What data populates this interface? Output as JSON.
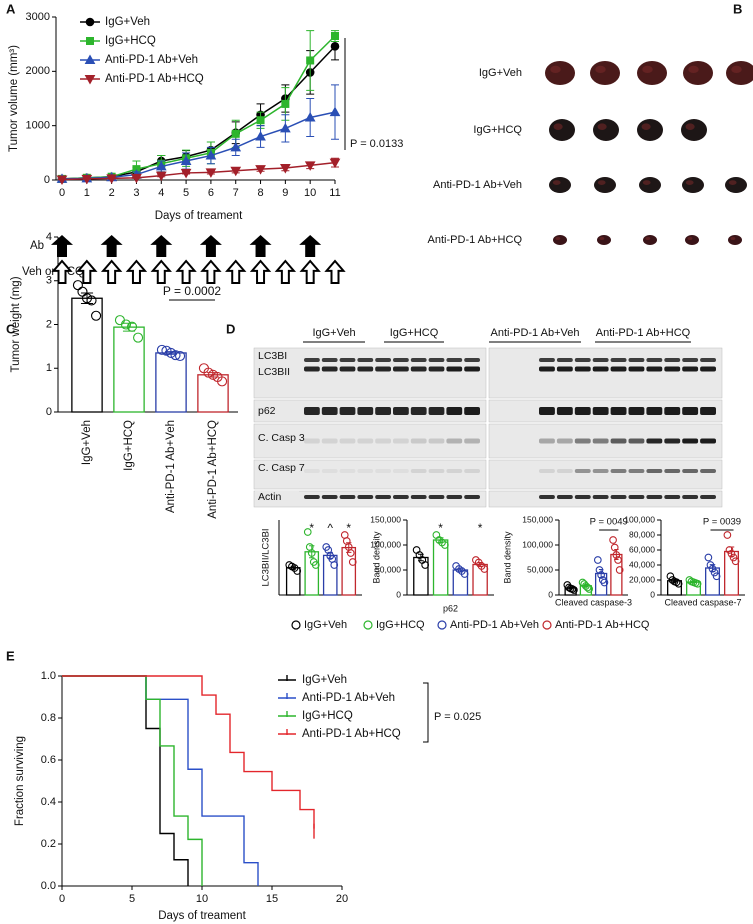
{
  "panel_labels": [
    "A",
    "B",
    "C",
    "D",
    "E"
  ],
  "schedule": {
    "rows": [
      "Ab",
      "Veh or HCQ"
    ],
    "ab_days": [
      0,
      2,
      4,
      6,
      8,
      10
    ],
    "veh_days": [
      0,
      1,
      2,
      3,
      4,
      5,
      6,
      7,
      8,
      9,
      10,
      11
    ]
  },
  "tumor_photos": {
    "rows": [
      "IgG+Veh",
      "IgG+HCQ",
      "Anti-PD-1 Ab+Veh",
      "Anti-PD-1 Ab+HCQ"
    ]
  },
  "blot": {
    "groups": [
      "IgG+Veh",
      "IgG+HCQ",
      "Anti-PD-1 Ab+Veh",
      "Anti-PD-1 Ab+HCQ"
    ],
    "rows": [
      "LC3BI",
      "LC3BII",
      "p62",
      "C. Casp 3",
      "C. Casp 7",
      "Actin"
    ]
  },
  "d_legend": {
    "series": [
      {
        "name": "IgG+Veh",
        "color": "#000000"
      },
      {
        "name": "IgG+HCQ",
        "color": "#2db52d"
      },
      {
        "name": "Anti-PD-1 Ab+Veh",
        "color": "#2a3ea8"
      },
      {
        "name": "Anti-PD-1 Ab+HCQ",
        "color": "#c0272d"
      }
    ]
  },
  "chart_data": [
    {
      "type": "line",
      "y_label": "Tumor volume (mm³)",
      "x_label": "Days of treament",
      "p_value": "P = 0.0133",
      "x": [
        0,
        1,
        2,
        3,
        4,
        5,
        6,
        7,
        8,
        9,
        10,
        11
      ],
      "xlim": [
        0,
        11
      ],
      "xticks": [
        0,
        1,
        2,
        3,
        4,
        5,
        6,
        7,
        8,
        9,
        10,
        11
      ],
      "ylim": [
        0,
        3000
      ],
      "yticks": [
        0,
        1000,
        2000,
        3000
      ],
      "series": [
        {
          "name": "IgG+Veh",
          "color": "#000000",
          "marker": "circle",
          "values": [
            20,
            40,
            60,
            150,
            350,
            430,
            550,
            870,
            1200,
            1500,
            1980,
            2460
          ],
          "errors": [
            10,
            15,
            20,
            80,
            100,
            110,
            150,
            200,
            200,
            250,
            400,
            250
          ]
        },
        {
          "name": "IgG+HCQ",
          "color": "#2db52d",
          "marker": "square",
          "values": [
            20,
            40,
            60,
            200,
            300,
            400,
            500,
            850,
            1100,
            1400,
            2200,
            2650
          ],
          "errors": [
            10,
            20,
            30,
            150,
            150,
            150,
            200,
            250,
            150,
            300,
            550,
            100
          ]
        },
        {
          "name": "Anti-PD-1 Ab+Veh",
          "color": "#2a4fb5",
          "marker": "triangle",
          "values": [
            20,
            30,
            50,
            100,
            250,
            350,
            450,
            600,
            800,
            950,
            1150,
            1250
          ],
          "errors": [
            10,
            15,
            20,
            50,
            100,
            150,
            150,
            150,
            200,
            250,
            350,
            500
          ]
        },
        {
          "name": "Anti-PD-1 Ab+HCQ",
          "color": "#a3202a",
          "marker": "triangle-down",
          "values": [
            10,
            20,
            30,
            40,
            80,
            130,
            140,
            170,
            200,
            220,
            270,
            320
          ],
          "errors": [
            5,
            5,
            10,
            10,
            20,
            20,
            30,
            40,
            40,
            50,
            60,
            80
          ]
        }
      ]
    },
    {
      "type": "bar",
      "y_label": "Tumor weight (mg)",
      "p_value": "P = 0.0002",
      "categories": [
        "IgG+Veh",
        "IgG+HCQ",
        "Anti-PD-1 Ab+Veh",
        "Anti-PD-1 Ab+HCQ"
      ],
      "colors": [
        "#000000",
        "#2db52d",
        "#2a3ea8",
        "#c0272d"
      ],
      "values": [
        2.6,
        1.94,
        1.35,
        0.85
      ],
      "errors": [
        0.12,
        0.09,
        0.03,
        0.05
      ],
      "points": [
        [
          2.9,
          2.75,
          2.6,
          2.55,
          2.2
        ],
        [
          2.1,
          2.0,
          1.95,
          1.7
        ],
        [
          1.42,
          1.4,
          1.35,
          1.3,
          1.28
        ],
        [
          1.0,
          0.9,
          0.85,
          0.8,
          0.7
        ]
      ],
      "ylim": [
        0,
        4
      ],
      "yticks": [
        0,
        1,
        2,
        3,
        4
      ]
    },
    {
      "type": "bar",
      "y_label": "LC3BII/LC3BI",
      "annotations": [
        null,
        "*",
        "^",
        "*"
      ],
      "values": [
        0.91,
        1.44,
        1.32,
        1.58
      ],
      "errors": [
        0.05,
        0.2,
        0.1,
        0.16
      ],
      "points": [
        [
          1.0,
          0.95,
          0.9,
          0.8
        ],
        [
          2.1,
          1.6,
          1.4,
          1.1,
          1.0
        ],
        [
          1.6,
          1.5,
          1.3,
          1.2,
          1.0
        ],
        [
          2.0,
          1.8,
          1.6,
          1.4,
          1.1
        ]
      ],
      "ylim": [
        0,
        2.5
      ]
    },
    {
      "type": "bar",
      "y_label": "Band density",
      "x_label": "p62",
      "annotations": [
        null,
        "*",
        null,
        "*"
      ],
      "values": [
        75000,
        110000,
        50000,
        61000
      ],
      "errors": [
        6500,
        4500,
        3500,
        4000
      ],
      "points": [
        [
          90000,
          80000,
          70000,
          60000
        ],
        [
          120000,
          110000,
          105000,
          100000
        ],
        [
          58000,
          52000,
          48000,
          42000
        ],
        [
          70000,
          65000,
          58000,
          52000
        ]
      ],
      "ylim": [
        0,
        150000
      ],
      "yticks": [
        0,
        {
          "value": 50000,
          "label": "50,000"
        },
        {
          "value": 100000,
          "label": "100,000"
        },
        {
          "value": 150000,
          "label": "150,000"
        }
      ]
    },
    {
      "type": "bar",
      "y_label": "Band density",
      "x_label": "Cleaved caspase-3",
      "p_value": "P = 0049",
      "values": [
        14000,
        18400,
        43000,
        81000
      ],
      "errors": [
        1800,
        2400,
        8000,
        10000
      ],
      "points": [
        [
          20000,
          15000,
          13000,
          12000,
          10000
        ],
        [
          25000,
          22000,
          18000,
          15000,
          12000
        ],
        [
          70000,
          50000,
          40000,
          30000,
          25000
        ],
        [
          110000,
          95000,
          80000,
          70000,
          50000
        ]
      ],
      "ylim": [
        0,
        150000
      ],
      "yticks": [
        0,
        {
          "value": 50000,
          "label": "50,000"
        },
        {
          "value": 100000,
          "label": "100,000"
        },
        {
          "value": 150000,
          "label": "150,000"
        }
      ]
    },
    {
      "type": "bar",
      "x_label": "Cleaved caspase-7",
      "p_value": "P = 0039",
      "values": [
        19000,
        17200,
        36000,
        58000
      ],
      "errors": [
        1800,
        900,
        4500,
        6000
      ],
      "points": [
        [
          25000,
          20000,
          18000,
          17000,
          15000
        ],
        [
          20000,
          18000,
          17000,
          16000,
          15000
        ],
        [
          50000,
          40000,
          35000,
          30000,
          25000
        ],
        [
          80000,
          60000,
          55000,
          50000,
          45000
        ]
      ],
      "ylim": [
        0,
        100000
      ],
      "yticks": [
        0,
        {
          "value": 20000,
          "label": "20,000"
        },
        {
          "value": 40000,
          "label": "40,000"
        },
        {
          "value": 60000,
          "label": "60,000"
        },
        {
          "value": 80000,
          "label": "80,000"
        },
        {
          "value": 100000,
          "label": "100,000"
        }
      ]
    },
    {
      "type": "survival",
      "y_label": "Fraction surviving",
      "x_label": "Days of treament",
      "p_value": "P = 0.025",
      "xlim": [
        0,
        20
      ],
      "xticks": [
        0,
        5,
        10,
        15,
        20
      ],
      "ylim": [
        0,
        1
      ],
      "yticks": [
        {
          "value": 0,
          "label": "0.0"
        },
        0.2,
        0.4,
        0.6,
        0.8,
        {
          "value": 1,
          "label": "1.0"
        }
      ],
      "series": [
        {
          "name": "IgG+Veh",
          "color": "#000000",
          "x": [
            0,
            6,
            7,
            8,
            9
          ],
          "y": [
            1,
            0.75,
            0.25,
            0.125,
            0
          ]
        },
        {
          "name": "Anti-PD-1 Ab+Veh",
          "color": "#2a4fc8",
          "x": [
            0,
            6,
            9,
            10,
            13,
            14
          ],
          "y": [
            1,
            0.889,
            0.556,
            0.333,
            0.111,
            0
          ]
        },
        {
          "name": "IgG+HCQ",
          "color": "#2db52d",
          "x": [
            0,
            6,
            7,
            8,
            9,
            10
          ],
          "y": [
            1,
            0.889,
            0.667,
            0.333,
            0.222,
            0
          ]
        },
        {
          "name": "Anti-PD-1 Ab+HCQ",
          "color": "#e3262b",
          "x": [
            0,
            10,
            11,
            12,
            13,
            15,
            17,
            18
          ],
          "y": [
            1,
            0.909,
            0.818,
            0.636,
            0.545,
            0.455,
            0.364,
            0.273
          ]
        }
      ]
    }
  ]
}
